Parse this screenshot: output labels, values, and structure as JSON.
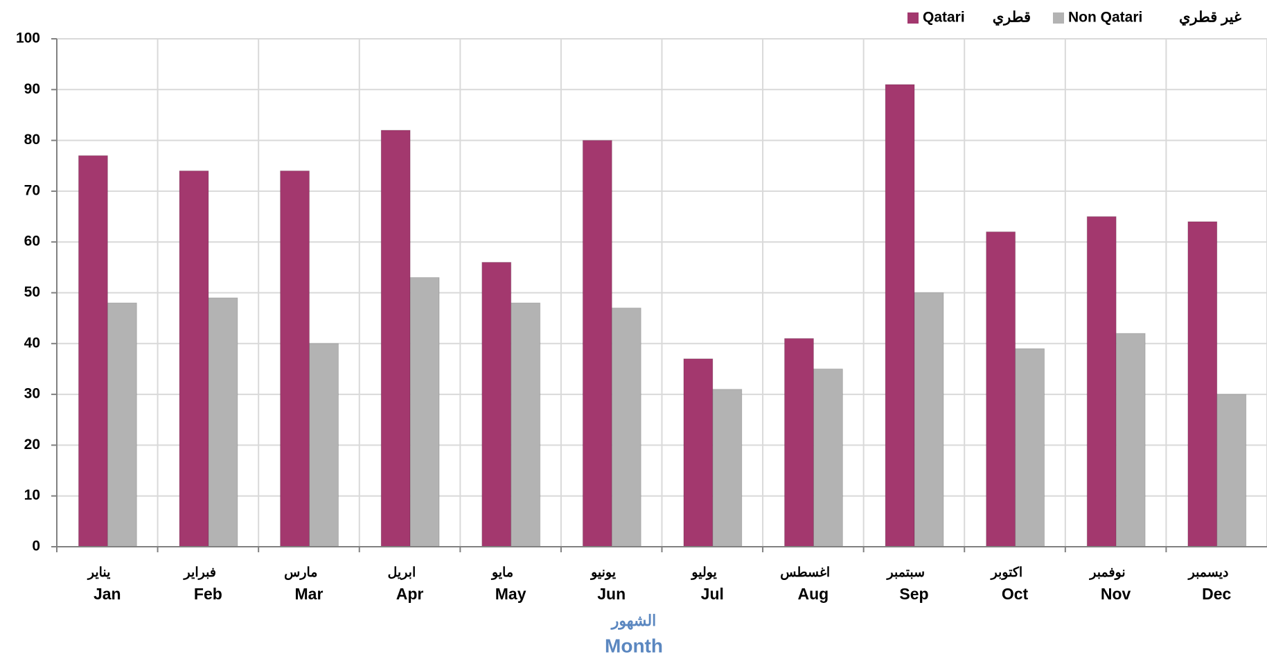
{
  "chart_data": {
    "type": "bar",
    "categories": [
      "Jan",
      "Feb",
      "Mar",
      "Apr",
      "May",
      "Jun",
      "Jul",
      "Aug",
      "Sep",
      "Oct",
      "Nov",
      "Dec"
    ],
    "categories_ar": [
      "يناير",
      "فبراير",
      "مارس",
      "ابريل",
      "مايو",
      "يونيو",
      "يوليو",
      "اغسطس",
      "سبتمبر",
      "اكتوبر",
      "نوفمبر",
      "ديسمبر"
    ],
    "series": [
      {
        "name": "Qatari",
        "name_ar": "قطري",
        "color": "#a3386e",
        "values": [
          77,
          74,
          74,
          82,
          56,
          80,
          37,
          41,
          91,
          62,
          65,
          64
        ]
      },
      {
        "name": "Non Qatari",
        "name_ar": "غير قطري",
        "color": "#b3b3b3",
        "values": [
          48,
          49,
          40,
          53,
          48,
          47,
          31,
          35,
          50,
          39,
          42,
          30
        ]
      }
    ],
    "x_label": "Month",
    "x_label_ar": "الشهور",
    "ylim": [
      0,
      100
    ],
    "yticks": [
      0,
      10,
      20,
      30,
      40,
      50,
      60,
      70,
      80,
      90,
      100
    ],
    "grid": true,
    "legend": "top-right"
  }
}
